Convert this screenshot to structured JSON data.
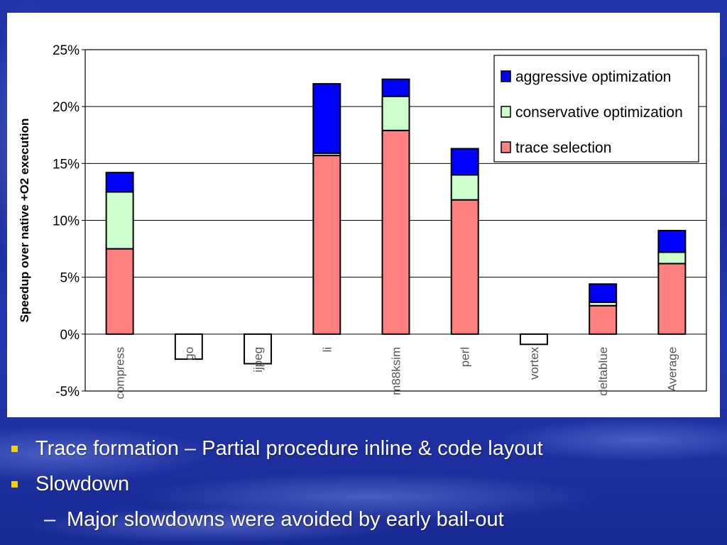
{
  "chart_data": {
    "type": "bar",
    "stacked": true,
    "ylabel": "Speedup over native +O2 execution",
    "ylim": [
      -5,
      25
    ],
    "yticks": [
      25,
      20,
      15,
      10,
      5,
      0,
      -5
    ],
    "ytick_labels": [
      "25%",
      "20%",
      "15%",
      "10%",
      "5%",
      "0%",
      "-5%"
    ],
    "grid": true,
    "legend_position": "top-right",
    "categories": [
      "compress",
      "go",
      "ijpeg",
      "li",
      "m88ksim",
      "perl",
      "vortex",
      "deltablue",
      "Average"
    ],
    "series": [
      {
        "name": "trace selection",
        "color": "#ff8080",
        "values": [
          7.5,
          -2.2,
          -2.6,
          15.7,
          17.9,
          11.8,
          -0.9,
          2.5,
          6.2
        ]
      },
      {
        "name": "conservative optimization",
        "color": "#ccffcc",
        "values": [
          5.0,
          0,
          0,
          0.2,
          3.0,
          2.2,
          0,
          0.3,
          1.0
        ]
      },
      {
        "name": "aggressive optimization",
        "color": "#0000ff",
        "values": [
          1.7,
          0,
          0,
          6.1,
          1.5,
          2.3,
          0,
          1.6,
          1.9
        ]
      }
    ],
    "legend_order": [
      "aggressive optimization",
      "conservative optimization",
      "trace selection"
    ]
  },
  "bullets": {
    "item1": "Trace formation – Partial procedure inline & code layout",
    "item2": "Slowdown",
    "sub1_dash": "–",
    "sub1": "Major slowdowns were avoided by early bail-out"
  },
  "colors": {
    "background": "#1f2fa3",
    "bullet": "#f2d200",
    "text": "#ffffff"
  }
}
